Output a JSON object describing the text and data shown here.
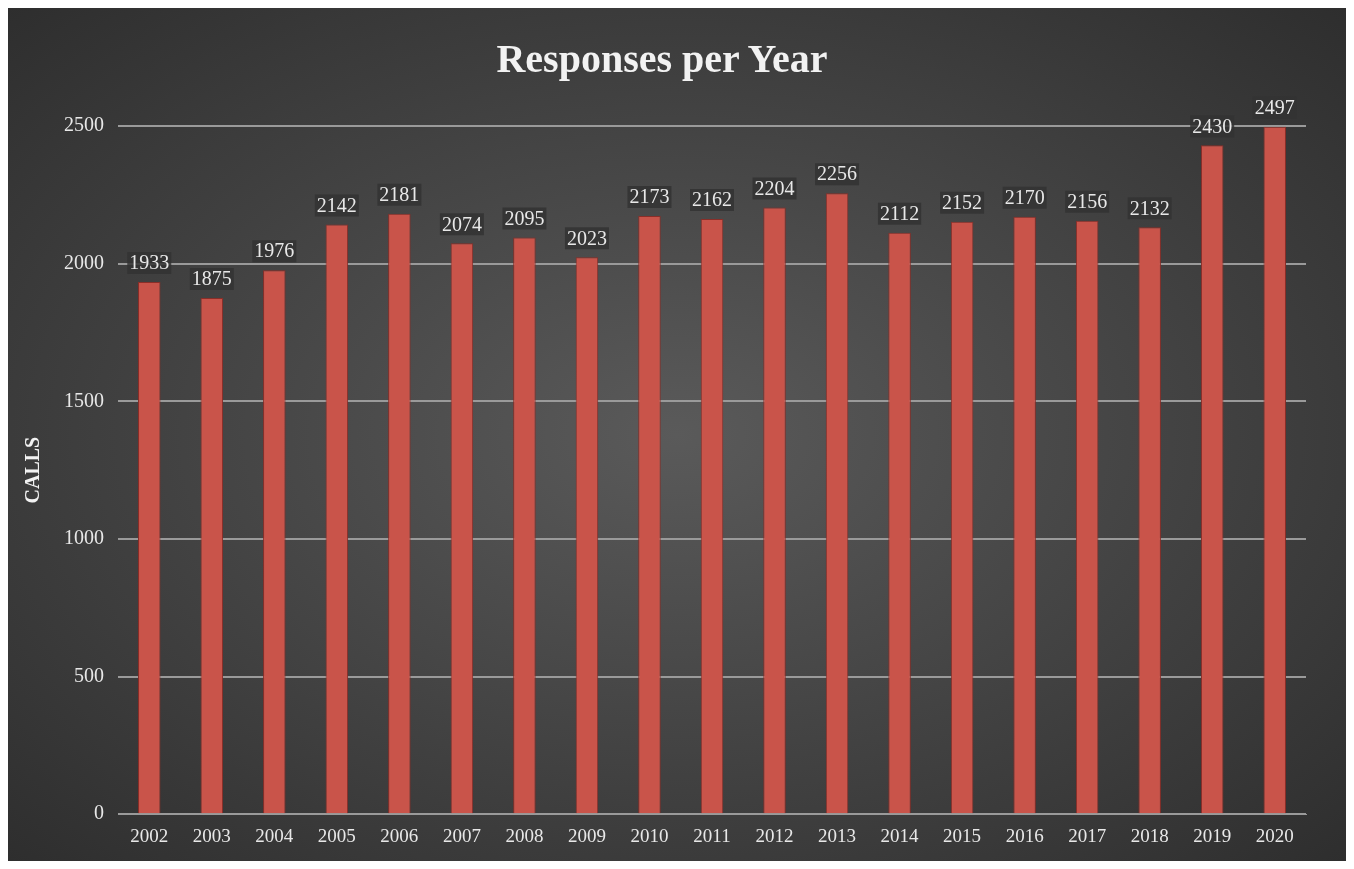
{
  "chart_data": {
    "type": "bar",
    "title": "Responses per Year",
    "ylabel": "CALLS",
    "categories": [
      "2002",
      "2003",
      "2004",
      "2005",
      "2006",
      "2007",
      "2008",
      "2009",
      "2010",
      "2011",
      "2012",
      "2013",
      "2014",
      "2015",
      "2016",
      "2017",
      "2018",
      "2019",
      "2020"
    ],
    "values": [
      1933,
      1875,
      1976,
      2142,
      2181,
      2074,
      2095,
      2023,
      2173,
      2162,
      2204,
      2256,
      2112,
      2152,
      2170,
      2156,
      2132,
      2430,
      2497
    ],
    "color": "#c9544a",
    "ylim": [
      0,
      2500
    ],
    "yticks": [
      0,
      500,
      1000,
      1500,
      2000,
      2500
    ],
    "grid": "y",
    "data_labels": true,
    "legend": false
  }
}
